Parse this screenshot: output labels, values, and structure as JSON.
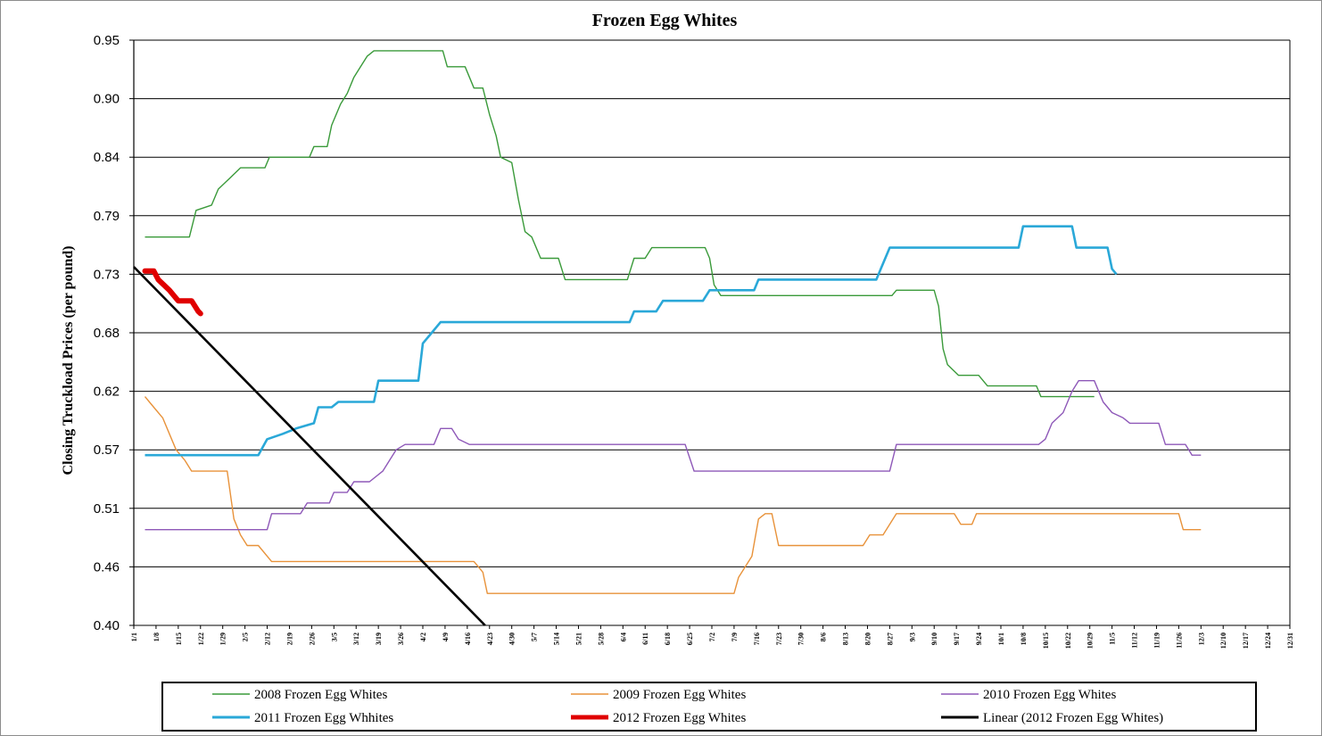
{
  "chart_data": {
    "type": "line",
    "title": "Frozen Egg Whites",
    "ylabel": "Closing Truckload Prices (per pound)",
    "xlabel": "",
    "ylim": [
      0.4,
      0.95
    ],
    "yticks": [
      "0.40",
      "0.46",
      "0.51",
      "0.57",
      "0.62",
      "0.68",
      "0.73",
      "0.79",
      "0.84",
      "0.90",
      "0.95"
    ],
    "grid": true,
    "legend_position": "bottom",
    "x_categories": [
      "1/1",
      "1/8",
      "1/15",
      "1/22",
      "1/29",
      "2/5",
      "2/12",
      "2/19",
      "2/26",
      "3/5",
      "3/12",
      "3/19",
      "3/26",
      "4/2",
      "4/9",
      "4/16",
      "4/23",
      "4/30",
      "5/7",
      "5/14",
      "5/21",
      "5/28",
      "6/4",
      "6/11",
      "6/18",
      "6/25",
      "7/2",
      "7/9",
      "7/16",
      "7/23",
      "7/30",
      "8/6",
      "8/13",
      "8/20",
      "8/27",
      "9/3",
      "9/10",
      "9/17",
      "9/24",
      "10/1",
      "10/8",
      "10/15",
      "10/22",
      "10/29",
      "11/5",
      "11/12",
      "11/19",
      "11/26",
      "12/3",
      "12/10",
      "12/17",
      "12/24",
      "12/31"
    ],
    "series": [
      {
        "name": "2008 Frozen Egg Whites",
        "color": "#3a9a3a",
        "points": [
          [
            0.5,
            0.765
          ],
          [
            2.5,
            0.765
          ],
          [
            2.8,
            0.79
          ],
          [
            3.5,
            0.795
          ],
          [
            3.8,
            0.81
          ],
          [
            4.3,
            0.82
          ],
          [
            4.8,
            0.83
          ],
          [
            5.9,
            0.83
          ],
          [
            6.1,
            0.84
          ],
          [
            7.5,
            0.84
          ],
          [
            7.9,
            0.84
          ],
          [
            8.1,
            0.85
          ],
          [
            8.7,
            0.85
          ],
          [
            8.9,
            0.87
          ],
          [
            9.3,
            0.89
          ],
          [
            9.6,
            0.9
          ],
          [
            9.9,
            0.915
          ],
          [
            10.2,
            0.925
          ],
          [
            10.5,
            0.935
          ],
          [
            10.8,
            0.94
          ],
          [
            13.9,
            0.94
          ],
          [
            14.1,
            0.925
          ],
          [
            14.9,
            0.925
          ],
          [
            15.3,
            0.905
          ],
          [
            15.7,
            0.905
          ],
          [
            16.0,
            0.88
          ],
          [
            16.3,
            0.86
          ],
          [
            16.5,
            0.84
          ],
          [
            17.0,
            0.835
          ],
          [
            17.3,
            0.8
          ],
          [
            17.6,
            0.77
          ],
          [
            17.9,
            0.765
          ],
          [
            18.3,
            0.745
          ],
          [
            19.1,
            0.745
          ],
          [
            19.4,
            0.725
          ],
          [
            22.2,
            0.725
          ],
          [
            22.5,
            0.745
          ],
          [
            23.0,
            0.745
          ],
          [
            23.3,
            0.755
          ],
          [
            25.7,
            0.755
          ],
          [
            25.9,
            0.745
          ],
          [
            26.1,
            0.72
          ],
          [
            26.4,
            0.71
          ],
          [
            34.1,
            0.71
          ],
          [
            34.3,
            0.715
          ],
          [
            36.0,
            0.715
          ],
          [
            36.2,
            0.7
          ],
          [
            36.4,
            0.66
          ],
          [
            36.6,
            0.645
          ],
          [
            37.1,
            0.635
          ],
          [
            38.0,
            0.635
          ],
          [
            38.4,
            0.625
          ],
          [
            40.6,
            0.625
          ],
          [
            40.8,
            0.615
          ],
          [
            43.2,
            0.615
          ]
        ]
      },
      {
        "name": "2009 Frozen Egg Whites",
        "color": "#e8923a",
        "points": [
          [
            0.5,
            0.615
          ],
          [
            0.7,
            0.61
          ],
          [
            0.9,
            0.605
          ],
          [
            1.3,
            0.595
          ],
          [
            1.6,
            0.58
          ],
          [
            1.9,
            0.565
          ],
          [
            2.3,
            0.555
          ],
          [
            2.6,
            0.545
          ],
          [
            4.2,
            0.545
          ],
          [
            4.5,
            0.5
          ],
          [
            4.8,
            0.485
          ],
          [
            5.1,
            0.475
          ],
          [
            5.6,
            0.475
          ],
          [
            6.2,
            0.46
          ],
          [
            15.3,
            0.46
          ],
          [
            15.7,
            0.45
          ],
          [
            15.9,
            0.43
          ],
          [
            27.0,
            0.43
          ],
          [
            27.2,
            0.445
          ],
          [
            27.5,
            0.455
          ],
          [
            27.8,
            0.465
          ],
          [
            28.1,
            0.5
          ],
          [
            28.4,
            0.505
          ],
          [
            28.7,
            0.505
          ],
          [
            29.0,
            0.475
          ],
          [
            32.8,
            0.475
          ],
          [
            33.1,
            0.485
          ],
          [
            33.7,
            0.485
          ],
          [
            34.3,
            0.505
          ],
          [
            36.9,
            0.505
          ],
          [
            37.2,
            0.495
          ],
          [
            37.7,
            0.495
          ],
          [
            37.9,
            0.505
          ],
          [
            47.0,
            0.505
          ],
          [
            47.2,
            0.49
          ],
          [
            48.0,
            0.49
          ]
        ]
      },
      {
        "name": "2010 Frozen Egg Whites",
        "color": "#8e58b8",
        "points": [
          [
            0.5,
            0.49
          ],
          [
            6.0,
            0.49
          ],
          [
            6.2,
            0.505
          ],
          [
            7.5,
            0.505
          ],
          [
            7.8,
            0.515
          ],
          [
            8.8,
            0.515
          ],
          [
            9.0,
            0.525
          ],
          [
            9.6,
            0.525
          ],
          [
            9.9,
            0.535
          ],
          [
            10.6,
            0.535
          ],
          [
            11.2,
            0.545
          ],
          [
            11.8,
            0.565
          ],
          [
            12.2,
            0.57
          ],
          [
            13.5,
            0.57
          ],
          [
            13.8,
            0.585
          ],
          [
            14.3,
            0.585
          ],
          [
            14.6,
            0.575
          ],
          [
            15.1,
            0.57
          ],
          [
            24.8,
            0.57
          ],
          [
            25.2,
            0.545
          ],
          [
            34.0,
            0.545
          ],
          [
            34.3,
            0.57
          ],
          [
            40.7,
            0.57
          ],
          [
            41.0,
            0.575
          ],
          [
            41.3,
            0.59
          ],
          [
            41.8,
            0.6
          ],
          [
            42.2,
            0.62
          ],
          [
            42.5,
            0.63
          ],
          [
            43.2,
            0.63
          ],
          [
            43.6,
            0.61
          ],
          [
            44.0,
            0.6
          ],
          [
            44.5,
            0.595
          ],
          [
            44.8,
            0.59
          ],
          [
            46.1,
            0.59
          ],
          [
            46.4,
            0.57
          ],
          [
            47.3,
            0.57
          ],
          [
            47.6,
            0.56
          ],
          [
            48.0,
            0.56
          ]
        ]
      },
      {
        "name": "2011 Frozen Egg Whhites",
        "color": "#2aa8d8",
        "points": [
          [
            0.5,
            0.56
          ],
          [
            5.6,
            0.56
          ],
          [
            6.0,
            0.575
          ],
          [
            6.7,
            0.58
          ],
          [
            7.3,
            0.585
          ],
          [
            8.1,
            0.59
          ],
          [
            8.3,
            0.605
          ],
          [
            8.9,
            0.605
          ],
          [
            9.2,
            0.61
          ],
          [
            10.8,
            0.61
          ],
          [
            11.0,
            0.63
          ],
          [
            12.8,
            0.63
          ],
          [
            13.0,
            0.665
          ],
          [
            13.4,
            0.675
          ],
          [
            13.8,
            0.685
          ],
          [
            22.3,
            0.685
          ],
          [
            22.5,
            0.695
          ],
          [
            23.5,
            0.695
          ],
          [
            23.8,
            0.705
          ],
          [
            25.6,
            0.705
          ],
          [
            25.9,
            0.715
          ],
          [
            27.9,
            0.715
          ],
          [
            28.1,
            0.725
          ],
          [
            33.4,
            0.725
          ],
          [
            33.6,
            0.735
          ],
          [
            34.0,
            0.755
          ],
          [
            39.8,
            0.755
          ],
          [
            40.0,
            0.775
          ],
          [
            42.2,
            0.775
          ],
          [
            42.4,
            0.755
          ],
          [
            43.8,
            0.755
          ],
          [
            44.0,
            0.735
          ],
          [
            44.2,
            0.73
          ]
        ]
      },
      {
        "name": "2012 Frozen Egg Whites",
        "color": "#e00000",
        "points": [
          [
            0.5,
            0.733
          ],
          [
            0.9,
            0.733
          ],
          [
            1.1,
            0.725
          ],
          [
            1.6,
            0.715
          ],
          [
            2.0,
            0.705
          ],
          [
            2.6,
            0.705
          ],
          [
            2.9,
            0.695
          ],
          [
            3.0,
            0.693
          ]
        ]
      },
      {
        "name": "Linear (2012 Frozen Egg Whites)",
        "color": "#000000",
        "points": [
          [
            0.0,
            0.737
          ],
          [
            15.8,
            0.4
          ]
        ]
      }
    ]
  }
}
